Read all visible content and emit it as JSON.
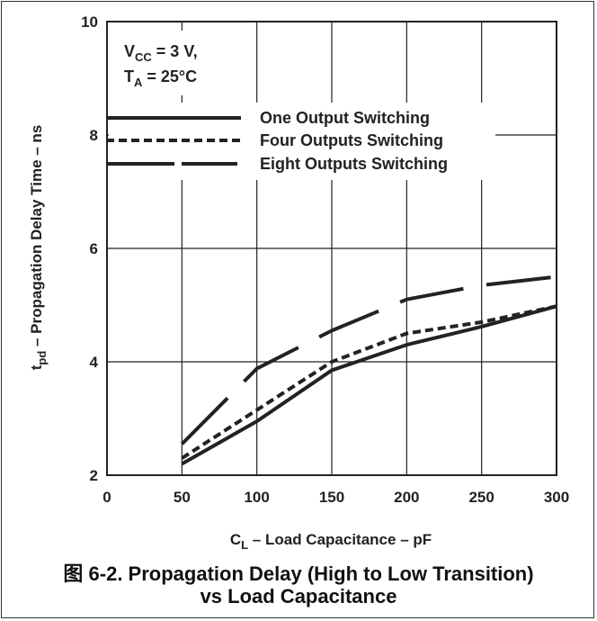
{
  "chart_data": {
    "type": "line",
    "xlabel_main": "C",
    "xlabel_sub": "L",
    "xlabel_rest": " – Load Capacitance – pF",
    "ylabel_main": "t",
    "ylabel_sub": "pd",
    "ylabel_rest": " – Propagation Delay Time – ns",
    "xlim": [
      0,
      300
    ],
    "ylim": [
      2,
      10
    ],
    "x_ticks": [
      0,
      50,
      100,
      150,
      200,
      250,
      300
    ],
    "y_ticks": [
      2,
      4,
      6,
      8,
      10
    ],
    "grid": true,
    "conditions": {
      "line1_main": "V",
      "line1_sub": "CC",
      "line1_rest": " = 3 V,",
      "line2_main": "T",
      "line2_sub": "A",
      "line2_rest": " = 25°C"
    },
    "series": [
      {
        "name": "One Output Switching",
        "style": "solid",
        "x": [
          50,
          100,
          150,
          200,
          250,
          300
        ],
        "values": [
          2.2,
          2.95,
          3.85,
          4.3,
          4.62,
          4.98
        ]
      },
      {
        "name": "Four Outputs Switching",
        "style": "dashed",
        "x": [
          50,
          100,
          150,
          200,
          250,
          300
        ],
        "values": [
          2.3,
          3.15,
          4.0,
          4.5,
          4.7,
          4.98
        ]
      },
      {
        "name": "Eight Outputs Switching",
        "style": "long-dash",
        "x": [
          50,
          100,
          150,
          200,
          250,
          300
        ],
        "values": [
          2.55,
          3.88,
          4.55,
          5.1,
          5.35,
          5.5
        ]
      }
    ]
  },
  "caption": {
    "line1": "图 6-2. Propagation Delay (High to Low Transition)",
    "line2": "vs Load Capacitance"
  }
}
